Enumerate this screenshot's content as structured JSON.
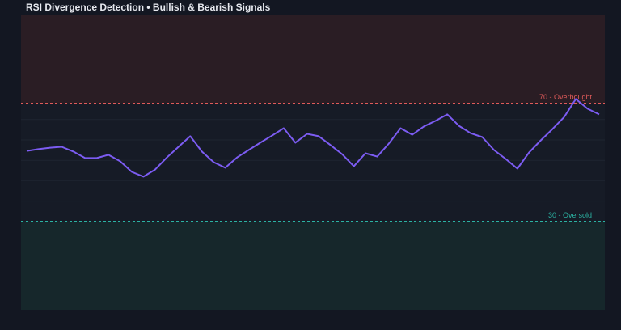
{
  "chart_data": {
    "type": "line",
    "title": "RSI Divergence Detection • Bullish & Bearish Signals",
    "series": [
      {
        "name": "RSI",
        "color": "#7c5cf2",
        "values": [
          53.8,
          54.4,
          54.9,
          55.2,
          53.6,
          51.4,
          51.4,
          52.5,
          50.3,
          46.7,
          45.1,
          47.5,
          51.6,
          55.2,
          58.8,
          53.6,
          50.0,
          48.1,
          51.6,
          54.1,
          56.6,
          59.0,
          61.5,
          56.6,
          59.6,
          58.8,
          55.8,
          52.7,
          48.6,
          53.0,
          51.9,
          56.3,
          61.5,
          59.3,
          62.1,
          64.0,
          66.2,
          62.3,
          59.8,
          58.5,
          54.1,
          51.1,
          47.8,
          53.3,
          57.4,
          61.2,
          65.3,
          71.4,
          68.1,
          66.2
        ]
      }
    ],
    "ylim": [
      0,
      100
    ],
    "thresholds": [
      {
        "value": 70,
        "label": "70 - Overbought",
        "color": "#e05a5a",
        "zone": [
          70,
          100
        ],
        "zone_color": "#2a1d24"
      },
      {
        "value": 30,
        "label": "30 - Oversold",
        "color": "#2bb3a3",
        "zone": [
          0,
          30
        ],
        "zone_color": "#16272b"
      }
    ]
  }
}
